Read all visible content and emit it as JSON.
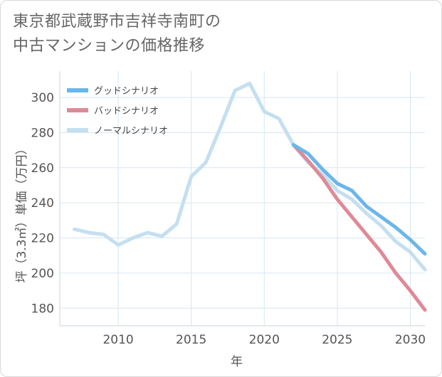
{
  "title_line1": "東京都武蔵野市吉祥寺南町の",
  "title_line2": "中古マンションの価格推移",
  "chart_data": {
    "type": "line",
    "title": "東京都武蔵野市吉祥寺南町の中古マンションの価格推移",
    "xlabel": "年",
    "ylabel": "坪（3.3㎡）単価（万円）",
    "xlim": [
      2006,
      2031
    ],
    "ylim": [
      170,
      315
    ],
    "xticks": [
      2010,
      2015,
      2020,
      2025,
      2030
    ],
    "yticks": [
      180,
      200,
      220,
      240,
      260,
      280,
      300
    ],
    "grid": true,
    "legend_position": "top-left",
    "series": [
      {
        "name": "グッドシナリオ",
        "color": "#6bb6ea",
        "x": [
          2022,
          2023,
          2024,
          2025,
          2026,
          2027,
          2028,
          2029,
          2030,
          2031
        ],
        "values": [
          273,
          268,
          259,
          251,
          247,
          238,
          232,
          226,
          219,
          211
        ]
      },
      {
        "name": "バッドシナリオ",
        "color": "#de8a96",
        "x": [
          2022,
          2023,
          2024,
          2025,
          2026,
          2027,
          2028,
          2029,
          2030,
          2031
        ],
        "values": [
          273,
          264,
          254,
          242,
          232,
          222,
          212,
          200,
          190,
          179
        ]
      },
      {
        "name": "ノーマルシナリオ",
        "color": "#c4dff0",
        "x": [
          2007,
          2008,
          2009,
          2010,
          2011,
          2012,
          2013,
          2014,
          2015,
          2016,
          2017,
          2018,
          2019,
          2020,
          2021,
          2022,
          2023,
          2024,
          2025,
          2026,
          2027,
          2028,
          2029,
          2030,
          2031
        ],
        "values": [
          225,
          223,
          222,
          216,
          220,
          223,
          221,
          228,
          255,
          263,
          283,
          304,
          308,
          292,
          288,
          273,
          263,
          256,
          247,
          242,
          234,
          227,
          218,
          212,
          202
        ]
      }
    ]
  }
}
